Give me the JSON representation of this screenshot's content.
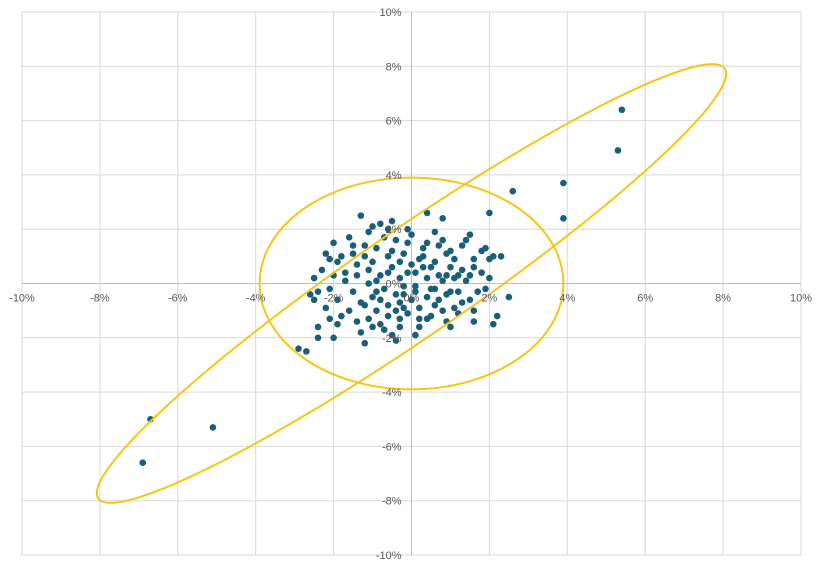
{
  "chart_data": {
    "type": "scatter",
    "title": "",
    "xlabel": "",
    "ylabel": "",
    "xlim": [
      -10,
      10
    ],
    "ylim": [
      -10,
      10
    ],
    "x_ticks": [
      -10,
      -8,
      -6,
      -4,
      -2,
      0,
      2,
      4,
      6,
      8,
      10
    ],
    "y_ticks": [
      -10,
      -8,
      -6,
      -4,
      -2,
      0,
      2,
      4,
      6,
      8,
      10
    ],
    "x_tick_labels": [
      "-10%",
      "-8%",
      "-6%",
      "-4%",
      "-2%",
      "0%",
      "2%",
      "4%",
      "6%",
      "8%",
      "10%"
    ],
    "y_tick_labels": [
      "-10%",
      "-8%",
      "-6%",
      "-4%",
      "-2%",
      "0%",
      "2%",
      "4%",
      "6%",
      "8%",
      "10%"
    ],
    "grid": true,
    "colors": {
      "points": "#1a5f7a",
      "ellipse": "#f5c518",
      "grid": "#d9d9d9",
      "axis": "#bfbfbf"
    },
    "series": [
      {
        "values": [
          [
            5.4,
            6.4
          ],
          [
            5.3,
            4.9
          ],
          [
            3.9,
            3.7
          ],
          [
            3.9,
            2.4
          ],
          [
            2.6,
            3.4
          ],
          [
            2.0,
            2.6
          ],
          [
            -6.7,
            -5.0
          ],
          [
            -6.9,
            -6.6
          ],
          [
            -5.1,
            -5.3
          ],
          [
            -2.9,
            -2.4
          ],
          [
            -2.7,
            -2.5
          ],
          [
            2.5,
            -0.5
          ],
          [
            2.2,
            -1.2
          ],
          [
            2.1,
            -1.5
          ],
          [
            2.1,
            1.0
          ],
          [
            2.0,
            0.9
          ],
          [
            1.9,
            -0.2
          ],
          [
            1.8,
            1.2
          ],
          [
            1.6,
            -1.4
          ],
          [
            1.6,
            0.6
          ],
          [
            1.5,
            1.8
          ],
          [
            1.3,
            0.5
          ],
          [
            1.3,
            1.4
          ],
          [
            1.2,
            -0.3
          ],
          [
            1.1,
            0.2
          ],
          [
            1.0,
            -1.6
          ],
          [
            1.0,
            1.2
          ],
          [
            0.9,
            0.3
          ],
          [
            0.8,
            2.4
          ],
          [
            0.8,
            1.6
          ],
          [
            0.7,
            -0.6
          ],
          [
            0.6,
            -0.8
          ],
          [
            0.5,
            0.6
          ],
          [
            0.4,
            -1.3
          ],
          [
            0.4,
            2.6
          ],
          [
            0.3,
            1.0
          ],
          [
            0.2,
            -0.9
          ],
          [
            0.1,
            0.4
          ],
          [
            0.0,
            -0.6
          ],
          [
            -0.1,
            1.5
          ],
          [
            -0.1,
            2.0
          ],
          [
            -0.2,
            -0.1
          ],
          [
            -0.3,
            -1.3
          ],
          [
            -0.3,
            0.8
          ],
          [
            -0.4,
            -2.1
          ],
          [
            -0.4,
            -0.4
          ],
          [
            -0.5,
            0.6
          ],
          [
            -0.5,
            2.3
          ],
          [
            -0.6,
            -0.8
          ],
          [
            -0.6,
            1.0
          ],
          [
            -0.7,
            -1.7
          ],
          [
            -0.7,
            -0.2
          ],
          [
            -0.8,
            0.3
          ],
          [
            -0.8,
            2.2
          ],
          [
            -0.9,
            -1.0
          ],
          [
            -0.9,
            1.3
          ],
          [
            -1.0,
            -0.5
          ],
          [
            -1.0,
            0.8
          ],
          [
            -1.1,
            -1.3
          ],
          [
            -1.1,
            0.0
          ],
          [
            -1.2,
            1.0
          ],
          [
            -1.3,
            -0.7
          ],
          [
            -1.3,
            2.5
          ],
          [
            -1.4,
            -1.4
          ],
          [
            -1.4,
            0.3
          ],
          [
            -1.5,
            1.4
          ],
          [
            -1.6,
            -1.0
          ],
          [
            -1.7,
            0.1
          ],
          [
            -1.8,
            1.0
          ],
          [
            -1.9,
            -0.6
          ],
          [
            -2.0,
            0.3
          ],
          [
            -2.0,
            1.5
          ],
          [
            -2.1,
            -0.2
          ],
          [
            -2.1,
            -1.3
          ],
          [
            -2.2,
            1.1
          ],
          [
            -2.4,
            -1.6
          ],
          [
            -2.4,
            -2.0
          ],
          [
            -2.5,
            -0.6
          ],
          [
            -2.0,
            -2.0
          ],
          [
            -1.2,
            -2.2
          ],
          [
            -0.5,
            -1.9
          ],
          [
            0.2,
            -1.6
          ],
          [
            0.9,
            -0.4
          ],
          [
            1.4,
            0.1
          ],
          [
            -0.3,
            0.2
          ],
          [
            0.4,
            0.2
          ],
          [
            0.6,
            -0.2
          ],
          [
            -0.2,
            1.1
          ],
          [
            0.1,
            -0.3
          ],
          [
            -0.6,
            0.4
          ],
          [
            0.3,
            0.6
          ],
          [
            -0.9,
            -0.3
          ],
          [
            1.1,
            0.9
          ],
          [
            -1.5,
            -0.3
          ],
          [
            0.7,
            1.4
          ],
          [
            -0.4,
            -1.0
          ],
          [
            1.5,
            -0.6
          ],
          [
            -1.9,
            0.8
          ],
          [
            0.0,
            1.8
          ],
          [
            -1.1,
            1.9
          ],
          [
            0.5,
            -1.2
          ],
          [
            1.8,
            0.4
          ],
          [
            -0.8,
            -1.5
          ],
          [
            -2.3,
            0.5
          ],
          [
            1.2,
            -1.1
          ],
          [
            -1.6,
            1.7
          ],
          [
            0.2,
            0.9
          ],
          [
            -0.1,
            -1.1
          ],
          [
            0.8,
            0.1
          ],
          [
            -1.2,
            -0.8
          ],
          [
            1.6,
            0.9
          ],
          [
            -0.7,
            1.7
          ],
          [
            0.4,
            -0.5
          ],
          [
            -2.2,
            -0.9
          ],
          [
            1.0,
            0.6
          ],
          [
            -0.3,
            -0.7
          ],
          [
            -1.4,
            0.7
          ],
          [
            0.6,
            1.9
          ],
          [
            2.0,
            0.2
          ],
          [
            -0.9,
            0.1
          ],
          [
            0.1,
            -1.9
          ],
          [
            1.3,
            -0.7
          ],
          [
            -1.8,
            -1.2
          ],
          [
            -0.5,
            1.2
          ],
          [
            0.9,
            -1.4
          ],
          [
            -1.0,
            2.1
          ],
          [
            1.7,
            -0.3
          ],
          [
            -2.5,
            0.2
          ],
          [
            0.3,
            1.3
          ],
          [
            -0.2,
            -0.4
          ],
          [
            0.7,
            0.3
          ],
          [
            -1.3,
            -1.8
          ],
          [
            1.4,
            1.6
          ],
          [
            -0.6,
            -1.2
          ],
          [
            -1.7,
            0.4
          ],
          [
            0.0,
            0.7
          ],
          [
            1.1,
            -0.9
          ],
          [
            -0.4,
            1.6
          ],
          [
            -2.1,
            0.9
          ],
          [
            0.5,
            -0.2
          ],
          [
            1.6,
            -1.0
          ],
          [
            -1.0,
            -1.6
          ],
          [
            -0.1,
            0.4
          ],
          [
            0.9,
            1.1
          ],
          [
            -1.5,
            1.1
          ],
          [
            0.2,
            -1.3
          ],
          [
            -0.8,
            -0.6
          ],
          [
            1.9,
            1.3
          ],
          [
            -2.4,
            -0.3
          ],
          [
            0.6,
            0.8
          ],
          [
            -0.3,
            -1.6
          ],
          [
            1.2,
            0.3
          ],
          [
            -1.1,
            0.5
          ],
          [
            0.4,
            1.5
          ],
          [
            -1.9,
            -1.5
          ],
          [
            0.8,
            -1.0
          ],
          [
            -0.6,
            2.0
          ],
          [
            1.5,
            0.3
          ],
          [
            -0.2,
            -0.9
          ],
          [
            -1.2,
            1.4
          ],
          [
            0.1,
            -0.1
          ],
          [
            2.3,
            1.0
          ],
          [
            -2.6,
            -0.4
          ],
          [
            1.0,
            -0.3
          ]
        ]
      }
    ],
    "annotations": [
      {
        "type": "ellipse",
        "center": [
          0,
          0
        ],
        "semi_axis_major": 11.3,
        "semi_axis_minor": 1.7,
        "rotation_deg": 45
      },
      {
        "type": "circle",
        "center": [
          0,
          0
        ],
        "radius": 3.9
      }
    ]
  }
}
